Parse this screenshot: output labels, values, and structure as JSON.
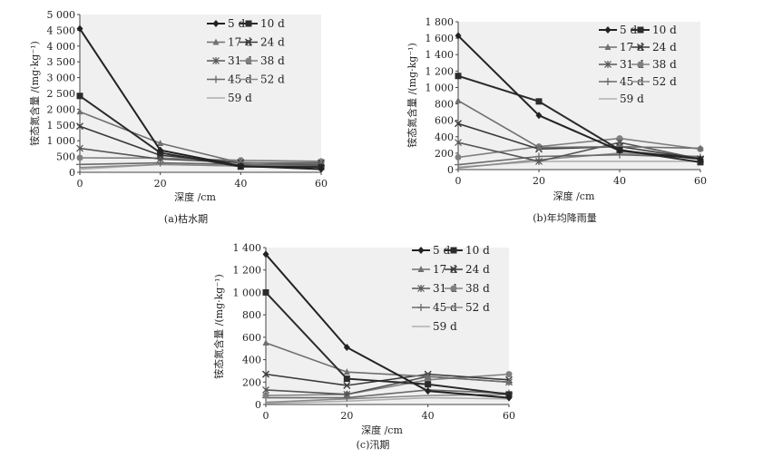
{
  "chart_data": [
    {
      "type": "line",
      "title": "",
      "caption": "(a)枯水期",
      "xlabel": "深度 /cm",
      "ylabel": "铵态氮含量 /(mg·kg⁻¹)",
      "x": [
        0,
        20,
        40,
        60
      ],
      "x_ticks": [
        "0",
        "20",
        "40",
        "60"
      ],
      "ylim": [
        0,
        5000
      ],
      "y_ticks": [
        "0",
        "500",
        "1 000",
        "1 500",
        "2 000",
        "2 500",
        "3 000",
        "3 500",
        "4 000",
        "4 500",
        "5 000"
      ],
      "series": [
        {
          "name": "5 d",
          "values": [
            4550,
            700,
            200,
            100
          ]
        },
        {
          "name": "10 d",
          "values": [
            2420,
            620,
            180,
            170
          ]
        },
        {
          "name": "17 d",
          "values": [
            1920,
            920,
            300,
            280
          ]
        },
        {
          "name": "24 d",
          "values": [
            1460,
            540,
            300,
            300
          ]
        },
        {
          "name": "31 d",
          "values": [
            760,
            420,
            310,
            230
          ]
        },
        {
          "name": "38 d",
          "values": [
            460,
            450,
            380,
            350
          ]
        },
        {
          "name": "45 d",
          "values": [
            250,
            300,
            250,
            210
          ]
        },
        {
          "name": "52 d",
          "values": [
            150,
            250,
            200,
            170
          ]
        },
        {
          "name": "59 d",
          "values": [
            100,
            250,
            200,
            170
          ]
        }
      ]
    },
    {
      "type": "line",
      "title": "",
      "caption": "(b)年均降雨量",
      "xlabel": "深度 /cm",
      "ylabel": "铵态氮含量 /(mg·kg⁻¹)",
      "x": [
        0,
        20,
        40,
        60
      ],
      "x_ticks": [
        "0",
        "20",
        "40",
        "60"
      ],
      "ylim": [
        0,
        1800
      ],
      "y_ticks": [
        "0",
        "200",
        "400",
        "600",
        "800",
        "1 000",
        "1 200",
        "1 400",
        "1 600",
        "1 800"
      ],
      "series": [
        {
          "name": "5 d",
          "values": [
            1630,
            660,
            230,
            130
          ]
        },
        {
          "name": "10 d",
          "values": [
            1140,
            830,
            240,
            90
          ]
        },
        {
          "name": "17 d",
          "values": [
            840,
            270,
            280,
            260
          ]
        },
        {
          "name": "24 d",
          "values": [
            560,
            250,
            280,
            130
          ]
        },
        {
          "name": "31 d",
          "values": [
            330,
            100,
            330,
            130
          ]
        },
        {
          "name": "38 d",
          "values": [
            150,
            280,
            380,
            250
          ]
        },
        {
          "name": "45 d",
          "values": [
            60,
            160,
            180,
            150
          ]
        },
        {
          "name": "52 d",
          "values": [
            20,
            120,
            200,
            160
          ]
        },
        {
          "name": "59 d",
          "values": [
            30,
            100,
            100,
            100
          ]
        }
      ]
    },
    {
      "type": "line",
      "title": "",
      "caption": "(c)汛期",
      "xlabel": "深度 /cm",
      "ylabel": "铵态氮含量 /(mg·kg⁻¹)",
      "x": [
        0,
        20,
        40,
        60
      ],
      "x_ticks": [
        "0",
        "20",
        "40",
        "60"
      ],
      "ylim": [
        0,
        1400
      ],
      "y_ticks": [
        "0",
        "200",
        "400",
        "600",
        "800",
        "1 000",
        "1 200",
        "1 400"
      ],
      "series": [
        {
          "name": "5 d",
          "values": [
            1340,
            510,
            120,
            60
          ]
        },
        {
          "name": "10 d",
          "values": [
            1000,
            230,
            180,
            90
          ]
        },
        {
          "name": "17 d",
          "values": [
            550,
            290,
            250,
            200
          ]
        },
        {
          "name": "24 d",
          "values": [
            270,
            170,
            270,
            220
          ]
        },
        {
          "name": "31 d",
          "values": [
            130,
            90,
            250,
            200
          ]
        },
        {
          "name": "38 d",
          "values": [
            80,
            90,
            220,
            270
          ]
        },
        {
          "name": "45 d",
          "values": [
            60,
            60,
            130,
            100
          ]
        },
        {
          "name": "52 d",
          "values": [
            20,
            50,
            80,
            90
          ]
        },
        {
          "name": "59 d",
          "values": [
            10,
            30,
            60,
            50
          ]
        }
      ]
    }
  ],
  "styles": {
    "series_colors": [
      "#222222",
      "#2b2b2b",
      "#6f6f6f",
      "#3a3a3a",
      "#555555",
      "#808080",
      "#6a6a6a",
      "#8a8a8a",
      "#b0b0b0"
    ],
    "series_markers": [
      "diamond",
      "square",
      "triangle",
      "x",
      "star",
      "circle",
      "plus",
      "none",
      "none"
    ],
    "plot_background": "#f0f0f0"
  }
}
